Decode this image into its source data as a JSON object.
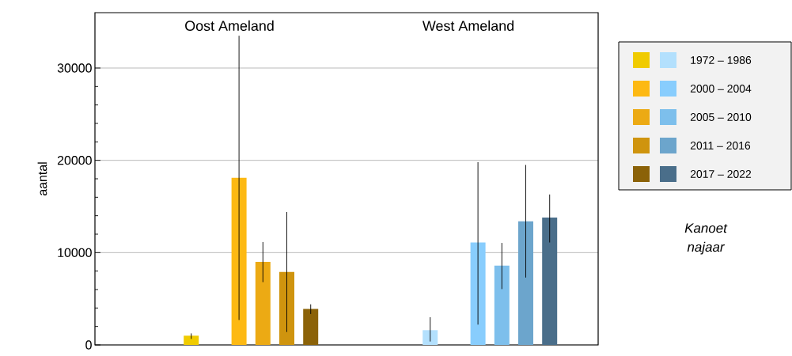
{
  "chart_data": {
    "type": "bar",
    "categories": [
      "Oost Ameland",
      "West Ameland"
    ],
    "ylabel": "aantal",
    "ylim": [
      0,
      36000
    ],
    "yticks": [
      0,
      10000,
      20000,
      30000
    ],
    "grid": "y",
    "legend": "right",
    "annotations": [
      "Kanoet najaar"
    ],
    "series": [
      {
        "name": "1972 – 1986",
        "colors": [
          "#f0cb00",
          "#b3e0fd"
        ],
        "values": [
          1000,
          1600
        ],
        "errors": [
          [
            650,
            1250
          ],
          [
            370,
            3000
          ]
        ]
      },
      {
        "name": "2000 – 2004",
        "colors": [
          "#fdb913",
          "#88cdfd"
        ],
        "values": [
          18100,
          11100
        ],
        "errors": [
          [
            2700,
            33500
          ],
          [
            2200,
            19800
          ]
        ]
      },
      {
        "name": "2005 – 2010",
        "colors": [
          "#ecaa14",
          "#7dbfec"
        ],
        "values": [
          9000,
          8600
        ],
        "errors": [
          [
            6800,
            11150
          ],
          [
            6050,
            11050
          ]
        ]
      },
      {
        "name": "2011 – 2016",
        "colors": [
          "#cf940e",
          "#6ca5cc"
        ],
        "values": [
          7900,
          13400
        ],
        "errors": [
          [
            1400,
            14400
          ],
          [
            7300,
            19500
          ]
        ]
      },
      {
        "name": "2017 – 2022",
        "colors": [
          "#8b6208",
          "#4a6e8a"
        ],
        "values": [
          3900,
          13800
        ],
        "errors": [
          [
            3350,
            4400
          ],
          [
            11100,
            16300
          ]
        ]
      }
    ]
  }
}
